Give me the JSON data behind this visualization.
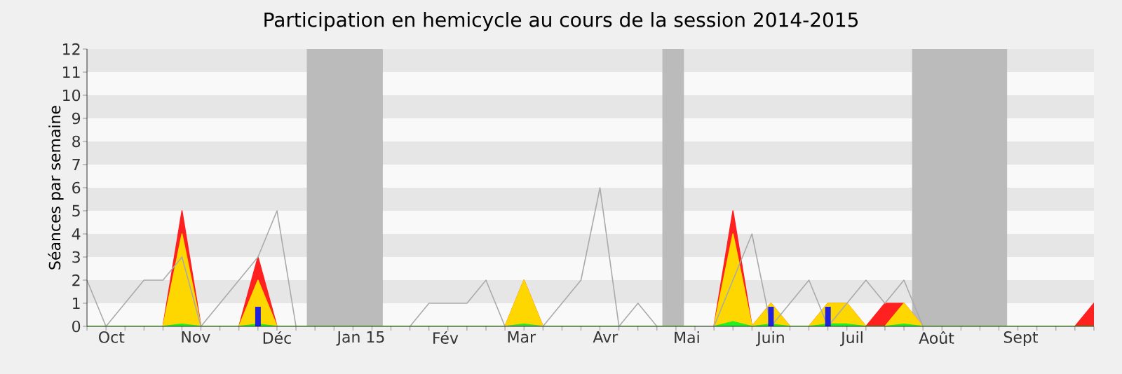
{
  "chart_data": {
    "type": "area",
    "title": "Participation en hemicycle au cours de la session 2014-2015",
    "ylabel": "Séances par semaine",
    "x": [
      "2014-09-22",
      "2014-09-29",
      "2014-10-06",
      "2014-10-13",
      "2014-10-20",
      "2014-10-27",
      "2014-11-03",
      "2014-11-10",
      "2014-11-17",
      "2014-11-24",
      "2014-12-01",
      "2014-12-08",
      "2014-12-15",
      "2014-12-22",
      "2014-12-29",
      "2015-01-05",
      "2015-01-12",
      "2015-01-19",
      "2015-01-26",
      "2015-02-02",
      "2015-02-09",
      "2015-02-16",
      "2015-02-23",
      "2015-03-02",
      "2015-03-09",
      "2015-03-16",
      "2015-03-23",
      "2015-03-30",
      "2015-04-06",
      "2015-04-13",
      "2015-04-20",
      "2015-04-27",
      "2015-05-04",
      "2015-05-11",
      "2015-05-18",
      "2015-05-25",
      "2015-06-01",
      "2015-06-08",
      "2015-06-15",
      "2015-06-22",
      "2015-06-29",
      "2015-07-06",
      "2015-07-13",
      "2015-07-20",
      "2015-07-27",
      "2015-08-03",
      "2015-08-10",
      "2015-08-17",
      "2015-08-24",
      "2015-08-31",
      "2015-09-07",
      "2015-09-14",
      "2015-09-21",
      "2015-09-28"
    ],
    "xlim": [
      "2014-09-22",
      "2015-09-28"
    ],
    "ylim": [
      0,
      12
    ],
    "yticks": [
      0,
      1,
      2,
      3,
      4,
      5,
      6,
      7,
      8,
      9,
      10,
      11,
      12
    ],
    "xticks": [
      {
        "value": "2014-10-01",
        "label": "Oct"
      },
      {
        "value": "2014-11-01",
        "label": "Nov"
      },
      {
        "value": "2014-12-01",
        "label": "Déc"
      },
      {
        "value": "2015-01-01",
        "label": "Jan 15"
      },
      {
        "value": "2015-02-01",
        "label": "Fév"
      },
      {
        "value": "2015-03-01",
        "label": "Mar"
      },
      {
        "value": "2015-04-01",
        "label": "Avr"
      },
      {
        "value": "2015-05-01",
        "label": "Mai"
      },
      {
        "value": "2015-06-01",
        "label": "Juin"
      },
      {
        "value": "2015-07-01",
        "label": "Juil"
      },
      {
        "value": "2015-08-01",
        "label": "Août"
      },
      {
        "value": "2015-09-01",
        "label": "Sept"
      }
    ],
    "bands": [
      {
        "axis": "x",
        "from": "2014-12-12",
        "to": "2015-01-09",
        "color": "#bbbbbb"
      },
      {
        "axis": "x",
        "from": "2015-04-22",
        "to": "2015-04-30",
        "color": "#bbbbbb"
      },
      {
        "axis": "x",
        "from": "2015-07-23",
        "to": "2015-08-27",
        "color": "#bbbbbb"
      }
    ],
    "series": [
      {
        "color": "#ff2020",
        "values": [
          0,
          0,
          0,
          0,
          0,
          5,
          0,
          0,
          0,
          3,
          0,
          0,
          0,
          0,
          0,
          0,
          0,
          0,
          0,
          0,
          0,
          0,
          0,
          2,
          0,
          0,
          0,
          0,
          0,
          0,
          0,
          0,
          0,
          0,
          5,
          0,
          1,
          0,
          0,
          1,
          1,
          0,
          1,
          1,
          0,
          0,
          0,
          0,
          0,
          0,
          0,
          0,
          0,
          1
        ]
      },
      {
        "color": "#ffd700",
        "values": [
          0,
          0,
          0,
          0,
          0,
          4,
          0,
          0,
          0,
          2,
          0,
          0,
          0,
          0,
          0,
          0,
          0,
          0,
          0,
          0,
          0,
          0,
          0,
          2,
          0,
          0,
          0,
          0,
          0,
          0,
          0,
          0,
          0,
          0,
          4,
          0,
          1,
          0,
          0,
          1,
          1,
          0,
          0,
          1,
          0,
          0,
          0,
          0,
          0,
          0,
          0,
          0,
          0,
          0
        ]
      },
      {
        "color": "#22ee22",
        "values": [
          0,
          0,
          0,
          0,
          0,
          0.1,
          0,
          0,
          0,
          0.1,
          0,
          0,
          0,
          0,
          0,
          0,
          0,
          0,
          0,
          0,
          0,
          0,
          0,
          0.1,
          0,
          0,
          0,
          0,
          0,
          0,
          0,
          0,
          0,
          0,
          0.2,
          0,
          0.1,
          0,
          0,
          0.1,
          0.1,
          0,
          0,
          0.1,
          0,
          0,
          0,
          0,
          0,
          0,
          0,
          0,
          0,
          0
        ]
      },
      {
        "type": "line",
        "color": "#aaaaaa",
        "values": [
          2,
          0,
          1,
          2,
          2,
          3,
          0,
          1,
          2,
          3,
          5,
          0,
          null,
          null,
          null,
          null,
          null,
          0,
          1,
          1,
          1,
          2,
          0,
          0,
          0,
          1,
          2,
          6,
          0,
          1,
          0,
          null,
          0,
          0,
          2,
          4,
          0,
          1,
          2,
          0,
          1,
          2,
          1,
          2,
          0,
          null,
          null,
          null,
          null,
          null,
          null,
          null,
          null,
          null
        ]
      },
      {
        "type": "bar",
        "color": "#2222dd",
        "values": [
          null,
          null,
          null,
          null,
          null,
          null,
          null,
          null,
          null,
          0.85,
          null,
          null,
          null,
          null,
          null,
          null,
          null,
          null,
          null,
          null,
          null,
          null,
          null,
          null,
          null,
          null,
          null,
          null,
          null,
          null,
          null,
          null,
          null,
          null,
          null,
          null,
          0.85,
          null,
          null,
          0.85,
          null,
          null,
          null,
          null,
          null,
          null,
          null,
          null,
          null,
          null,
          null,
          null,
          null,
          null
        ]
      }
    ]
  }
}
